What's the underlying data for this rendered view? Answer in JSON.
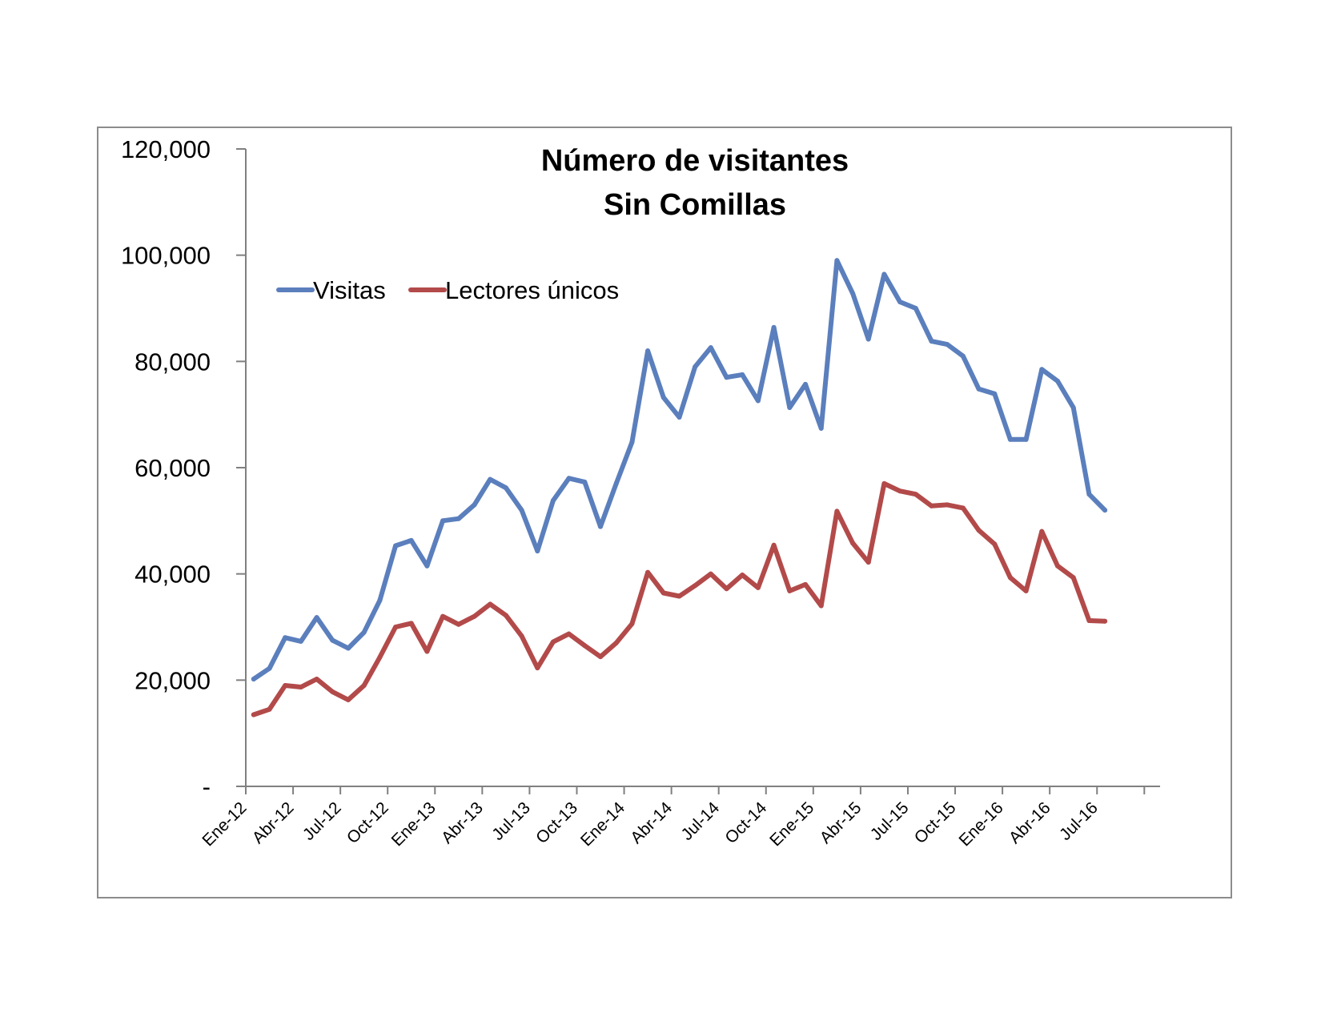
{
  "chart_data": {
    "type": "line",
    "title_lines": [
      "Número de visitantes",
      "Sin Comillas"
    ],
    "xlabel": "",
    "ylabel": "",
    "ylim": [
      0,
      120000
    ],
    "y_ticks": [
      0,
      20000,
      40000,
      60000,
      80000,
      100000,
      120000
    ],
    "y_tick_labels": [
      "-",
      "20,000",
      "40,000",
      "60,000",
      "80,000",
      "100,000",
      "120,000"
    ],
    "x_tick_labels": [
      "Ene-12",
      "Abr-12",
      "Jul-12",
      "Oct-12",
      "Ene-13",
      "Abr-13",
      "Jul-13",
      "Oct-13",
      "Ene-14",
      "Abr-14",
      "Jul-14",
      "Oct-14",
      "Ene-15",
      "Abr-15",
      "Jul-15",
      "Oct-15",
      "Ene-16",
      "Abr-16",
      "Jul-16"
    ],
    "categories": [
      "Ene-12",
      "Feb-12",
      "Mar-12",
      "Abr-12",
      "May-12",
      "Jun-12",
      "Jul-12",
      "Ago-12",
      "Sep-12",
      "Oct-12",
      "Nov-12",
      "Dic-12",
      "Ene-13",
      "Feb-13",
      "Mar-13",
      "Abr-13",
      "May-13",
      "Jun-13",
      "Jul-13",
      "Ago-13",
      "Sep-13",
      "Oct-13",
      "Nov-13",
      "Dic-13",
      "Ene-14",
      "Feb-14",
      "Mar-14",
      "Abr-14",
      "May-14",
      "Jun-14",
      "Jul-14",
      "Ago-14",
      "Sep-14",
      "Oct-14",
      "Nov-14",
      "Dic-14",
      "Ene-15",
      "Feb-15",
      "Mar-15",
      "Abr-15",
      "May-15",
      "Jun-15",
      "Jul-15",
      "Ago-15",
      "Sep-15",
      "Oct-15",
      "Nov-15",
      "Dic-15",
      "Ene-16",
      "Feb-16",
      "Mar-16",
      "Abr-16",
      "May-16",
      "Jun-16",
      "Jul-16"
    ],
    "series": [
      {
        "name": "Visitas",
        "color": "#5b7fbd",
        "values": [
          20200,
          22200,
          28000,
          27300,
          31800,
          27500,
          26000,
          29000,
          35000,
          45300,
          46300,
          41500,
          50000,
          50400,
          53000,
          57800,
          56200,
          52000,
          44300,
          53800,
          58000,
          57300,
          48900,
          57000,
          64800,
          82000,
          73200,
          69500,
          79000,
          82600,
          77000,
          77500,
          72600,
          86400,
          71300,
          75700,
          67400,
          99000,
          92800,
          84200,
          96400,
          91200,
          90000,
          83800,
          83200,
          81000,
          74800,
          73900,
          65300,
          65300,
          78500,
          76300,
          71300,
          55000,
          52000
        ]
      },
      {
        "name": "Lectores únicos",
        "color": "#b34a4a",
        "values": [
          13500,
          14500,
          19000,
          18700,
          20200,
          17800,
          16300,
          19000,
          24300,
          30000,
          30700,
          25400,
          32000,
          30500,
          32000,
          34300,
          32200,
          28300,
          22300,
          27200,
          28700,
          26500,
          24400,
          27000,
          30600,
          40300,
          36400,
          35800,
          37800,
          40000,
          37200,
          39800,
          37400,
          45400,
          36800,
          38000,
          34000,
          51800,
          45800,
          42200,
          57000,
          55600,
          55000,
          52800,
          53000,
          52400,
          48200,
          45600,
          39300,
          36800,
          48000,
          41500,
          39300,
          31200,
          31100
        ]
      }
    ],
    "grid": false,
    "legend_position": "top-left"
  }
}
